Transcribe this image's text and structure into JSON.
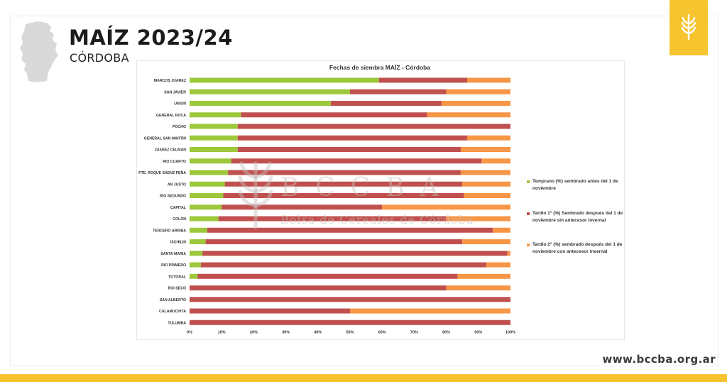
{
  "header": {
    "title": "MAÍZ 2023/24",
    "subtitle": "CÓRDOBA",
    "website": "www.bccba.org.ar"
  },
  "watermark": {
    "letters": "BCCBA",
    "name": "Bolsa de Cereales de Córdoba"
  },
  "colors": {
    "brand_yellow": "#f6c42f",
    "temprano": "#9dc83b",
    "tardio1": "#c0504d",
    "tardio2": "#f79646",
    "map_gray": "#d9d9d9"
  },
  "icons": {
    "province_map": "cordoba-map-icon",
    "logo": "wheat-icon"
  },
  "chart_data": {
    "type": "bar",
    "orientation": "horizontal",
    "stacked": "percent",
    "title": "Fechas de siembra MAÍZ - Córdoba",
    "xlabel": "",
    "ylabel": "",
    "xlim": [
      0,
      100
    ],
    "x_ticks": [
      "0%",
      "10%",
      "20%",
      "30%",
      "40%",
      "50%",
      "60%",
      "70%",
      "80%",
      "90%",
      "100%"
    ],
    "legend_position": "right",
    "categories": [
      "MARCOS JUAREZ",
      "SAN JAVIER",
      "UNION",
      "GENERAL ROCA",
      "POCHO",
      "GENERAL SAN MARTIN",
      "JUAREZ CELMAN",
      "RIO CUARTO",
      "PTE. ROQUE SAENZ PEÑA",
      "AN JUSTO",
      "RIO SEGUNDO",
      "CAPITAL",
      "COLON",
      "TERCERO ARRIBA",
      "ISCHILIN",
      "SANTA MARIA",
      "RIO PRIMERO",
      "TOTORAL",
      "RIO SECO",
      "SAN ALBERTO",
      "CALAMUCHITA",
      "TULUMBA"
    ],
    "series": [
      {
        "name": "Temprano (%) sembrado antes del 1 de noviembre",
        "color": "#9dc83b",
        "values": [
          59,
          50,
          44,
          16,
          15,
          15,
          15,
          13,
          12,
          11,
          10.5,
          10,
          9,
          5.5,
          5,
          4,
          3.5,
          2.5,
          0,
          0,
          0,
          0
        ]
      },
      {
        "name": "Tardío 1° (%) Sembrado después del 1 de noviembre sin antecesor invernal",
        "color": "#c0504d",
        "values": [
          27.5,
          30,
          34.5,
          58,
          85,
          71.5,
          69.5,
          78,
          72.5,
          74,
          75,
          50,
          71,
          89,
          80,
          95,
          89,
          81,
          80,
          100,
          50,
          100
        ]
      },
      {
        "name": "Tardío 2° (%) sembrado después del 1 de noviembre con antecesor invernal",
        "color": "#f79646",
        "values": [
          13.5,
          20,
          21.5,
          26,
          0,
          13.5,
          15.5,
          9,
          15.5,
          15,
          14.5,
          40,
          20,
          5.5,
          15,
          1,
          7.5,
          16.5,
          20,
          0,
          50,
          0
        ]
      }
    ]
  }
}
